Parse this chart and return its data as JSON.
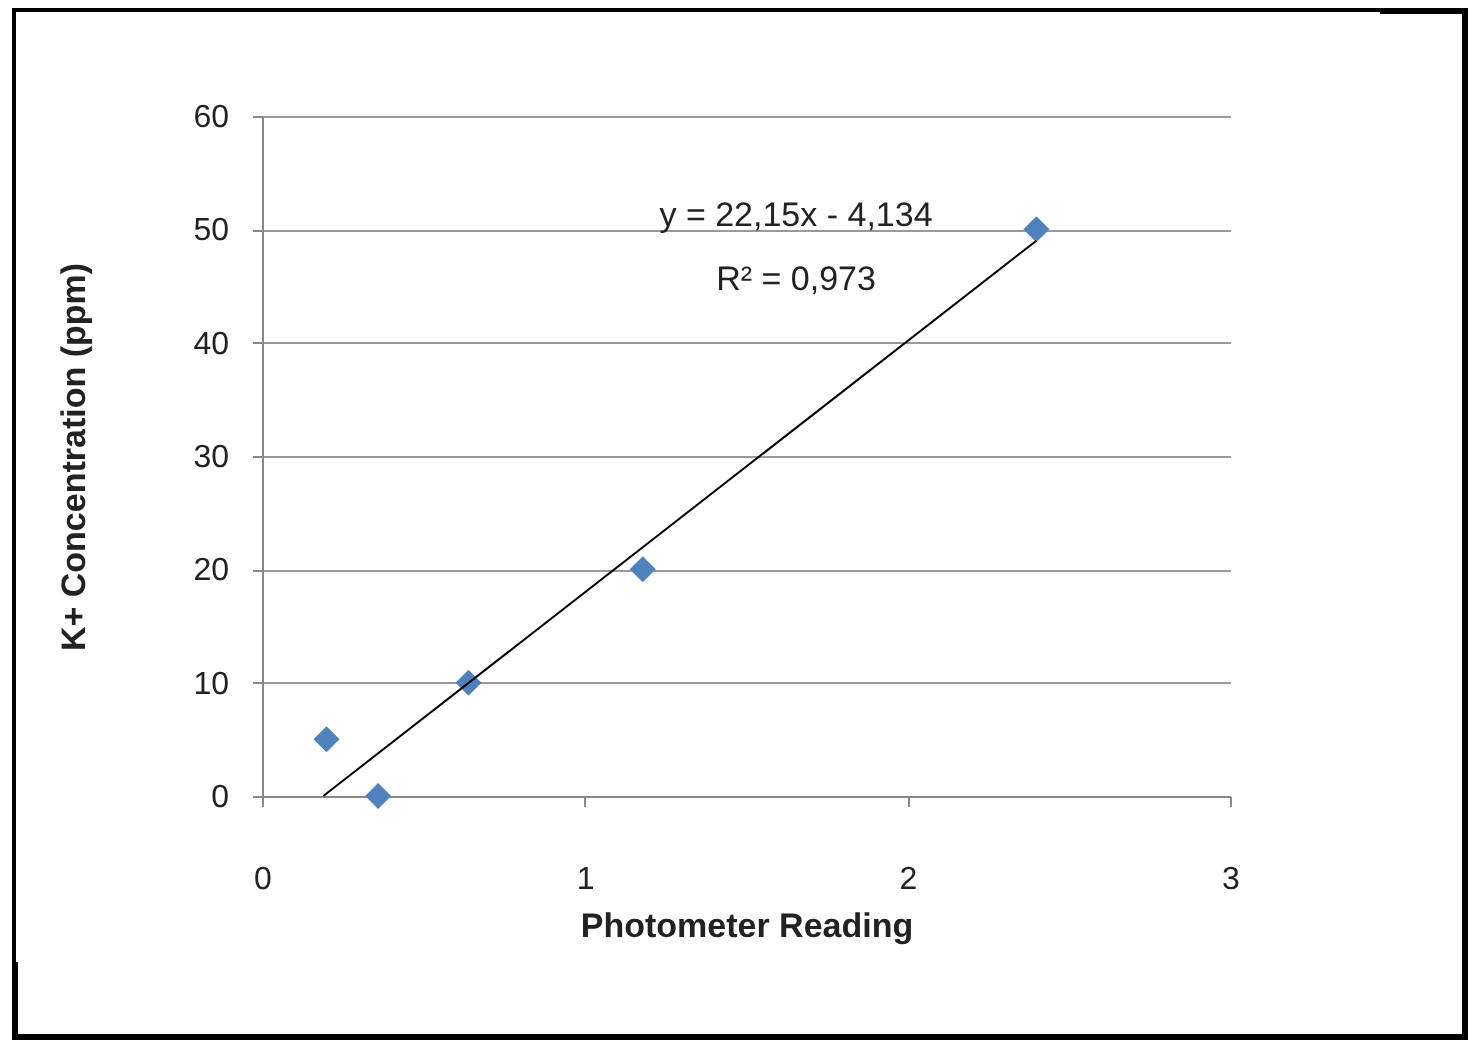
{
  "chart_data": {
    "type": "scatter",
    "xlabel": "Photometer Reading",
    "ylabel": "K+ Concentration  (ppm)",
    "x": [
      0.2,
      0.36,
      0.64,
      1.18,
      2.4
    ],
    "series": [
      {
        "color": "#4f81bd",
        "marker": "diamond",
        "values": [
          5,
          0,
          10,
          20,
          50
        ]
      },
      {
        "type": "line",
        "color": "#000000",
        "marker": "none",
        "line_style": "solid",
        "x": [
          0.19,
          2.4
        ],
        "values": [
          0,
          49
        ]
      }
    ],
    "annotations": [
      "y = 22,15x - 4,134",
      "R² = 0,973"
    ],
    "xlim": [
      0,
      3
    ],
    "xticks": [
      0,
      1,
      2,
      3
    ],
    "ylim": [
      0,
      60
    ],
    "yticks": [
      0,
      10,
      20,
      30,
      40,
      50,
      60
    ],
    "grid": "y"
  }
}
